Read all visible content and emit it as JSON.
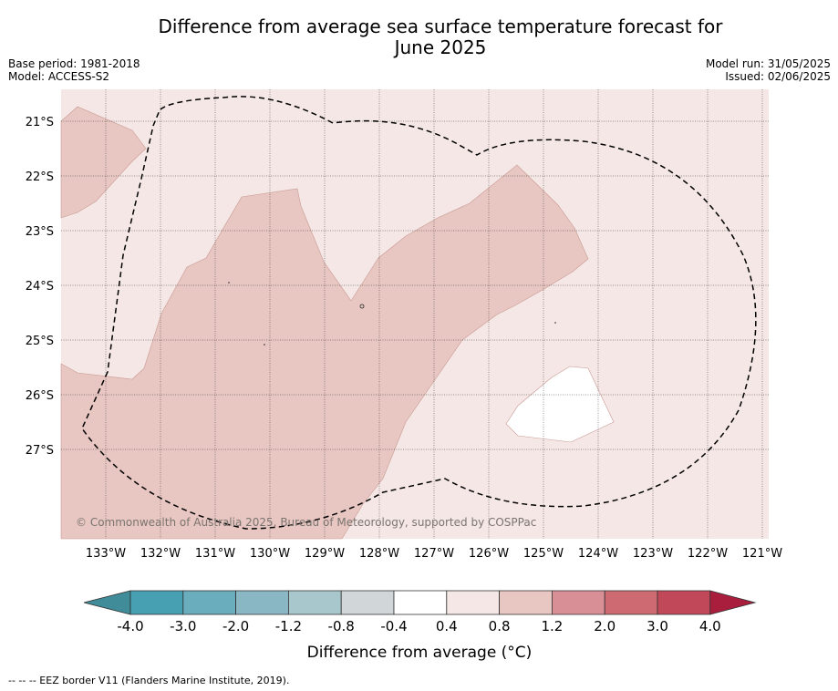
{
  "title_line1": "Difference from average sea surface temperature forecast for",
  "title_line2": "June 2025",
  "meta_left": [
    "Base period: 1981-2018",
    "Model: ACCESS-S2"
  ],
  "meta_right": [
    "Model run: 31/05/2025",
    "Issued: 02/06/2025"
  ],
  "copyright": "© Commonwealth of Australia 2025, Bureau of Meteorology, supported by COSPPac",
  "colorbar": {
    "title": "Difference from average (°C)",
    "ticks": [
      "-4.0",
      "-3.0",
      "-2.0",
      "-1.2",
      "-0.8",
      "-0.4",
      "0.4",
      "0.8",
      "1.2",
      "2.0",
      "3.0",
      "4.0"
    ],
    "colors": [
      "#408c99",
      "#46a0b2",
      "#6aaebd",
      "#8ab7c4",
      "#a8c7cc",
      "#d1d6d8",
      "#ffffff",
      "#f5e7e5",
      "#e8c6c1",
      "#d98f96",
      "#cd6a72",
      "#c04858",
      "#a81e3c"
    ]
  },
  "map": {
    "lat_labels": [
      "21°S",
      "22°S",
      "23°S",
      "24°S",
      "25°S",
      "26°S",
      "27°S"
    ],
    "lon_labels": [
      "133°W",
      "132°W",
      "131°W",
      "130°W",
      "129°W",
      "128°W",
      "127°W",
      "126°W",
      "125°W",
      "124°W",
      "123°W",
      "122°W",
      "121°W"
    ],
    "colors": {
      "background": "#f5e7e5",
      "anomaly_0_8_1_2": "#e8c6c1",
      "anomaly_near_zero": "#ffffff"
    }
  },
  "footnote": "--  --  -- EEZ border V11 (Flanders Marine Institute, 2019)."
}
